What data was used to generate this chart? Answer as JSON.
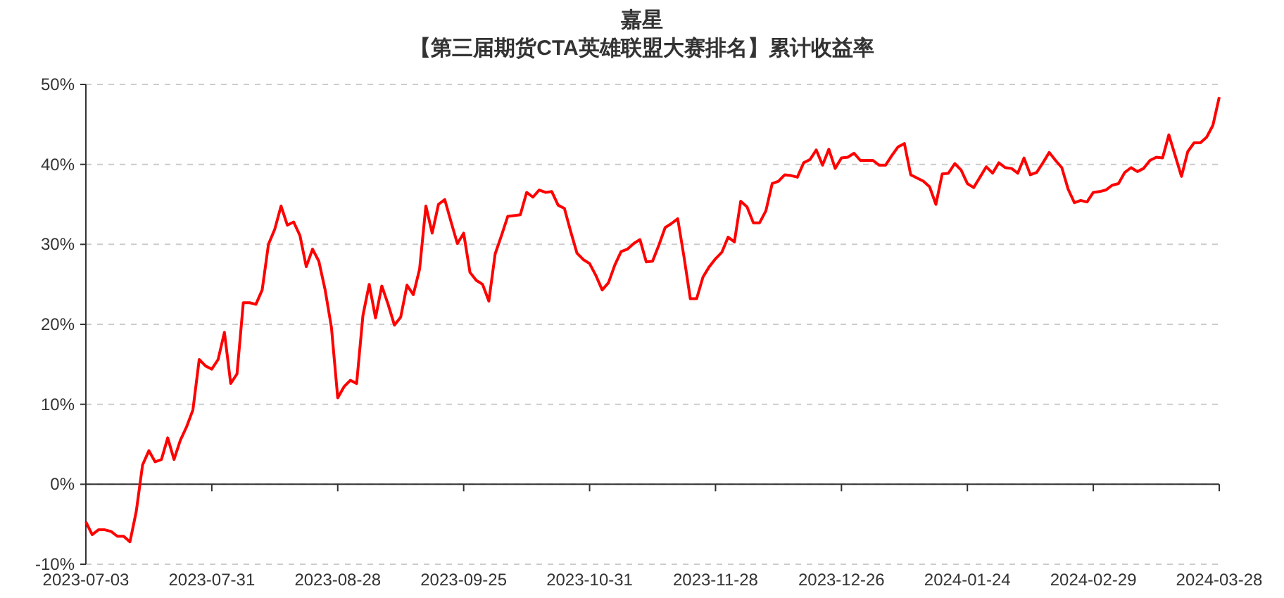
{
  "chart_data": {
    "type": "line",
    "title": "嘉星",
    "subtitle": "【第三届期货CTA英雄联盟大赛排名】累计收益率",
    "categories": [
      "2023-07-03",
      null,
      null,
      null,
      null,
      null,
      null,
      null,
      null,
      null,
      null,
      null,
      null,
      null,
      null,
      null,
      null,
      null,
      null,
      null,
      "2023-07-31",
      null,
      null,
      null,
      null,
      null,
      null,
      null,
      null,
      null,
      null,
      null,
      null,
      null,
      null,
      null,
      null,
      null,
      null,
      null,
      "2023-08-28",
      null,
      null,
      null,
      null,
      null,
      null,
      null,
      null,
      null,
      null,
      null,
      null,
      null,
      null,
      null,
      null,
      null,
      null,
      null,
      "2023-09-25",
      null,
      null,
      null,
      null,
      null,
      null,
      null,
      null,
      null,
      null,
      null,
      null,
      null,
      null,
      null,
      null,
      null,
      null,
      null,
      "2023-10-31",
      null,
      null,
      null,
      null,
      null,
      null,
      null,
      null,
      null,
      null,
      null,
      null,
      null,
      null,
      null,
      null,
      null,
      null,
      null,
      "2023-11-28",
      null,
      null,
      null,
      null,
      null,
      null,
      null,
      null,
      null,
      null,
      null,
      null,
      null,
      null,
      null,
      null,
      null,
      null,
      null,
      "2023-12-26",
      null,
      null,
      null,
      null,
      null,
      null,
      null,
      null,
      null,
      null,
      null,
      null,
      null,
      null,
      null,
      null,
      null,
      null,
      null,
      "2024-01-24",
      null,
      null,
      null,
      null,
      null,
      null,
      null,
      null,
      null,
      null,
      null,
      null,
      null,
      null,
      null,
      null,
      null,
      null,
      null,
      "2024-02-29",
      null,
      null,
      null,
      null,
      null,
      null,
      null,
      null,
      null,
      null,
      null,
      null,
      null,
      null,
      null,
      null,
      null,
      null,
      null,
      "2024-03-28"
    ],
    "series": [
      {
        "color": "#ff0000",
        "values": [
          -4.7,
          -6.3,
          -5.7,
          -5.7,
          -5.9,
          -6.5,
          -6.5,
          -7.2,
          -3.4,
          2.4,
          4.2,
          2.8,
          3.1,
          5.8,
          3.1,
          5.5,
          7.2,
          9.3,
          15.6,
          14.8,
          14.4,
          15.6,
          19.0,
          12.6,
          13.8,
          22.7,
          22.7,
          22.5,
          24.3,
          30.0,
          31.9,
          34.8,
          32.4,
          32.8,
          31.1,
          27.2,
          29.4,
          27.9,
          24.3,
          19.6,
          10.8,
          12.2,
          13.0,
          12.6,
          21.1,
          25.0,
          20.8,
          24.8,
          22.5,
          19.9,
          20.9,
          24.9,
          23.7,
          26.9,
          34.8,
          31.4,
          35.0,
          35.6,
          32.8,
          30.1,
          31.4,
          26.5,
          25.5,
          25.0,
          22.9,
          28.8,
          31.1,
          33.5,
          33.6,
          33.7,
          36.5,
          35.9,
          36.8,
          36.5,
          36.6,
          34.9,
          34.5,
          31.6,
          28.9,
          28.1,
          27.6,
          26.1,
          24.3,
          25.2,
          27.4,
          29.1,
          29.4,
          30.1,
          30.6,
          27.8,
          27.9,
          29.9,
          32.1,
          32.6,
          33.2,
          28.4,
          23.2,
          23.2,
          25.9,
          27.2,
          28.2,
          29.0,
          30.9,
          30.3,
          35.4,
          34.7,
          32.7,
          32.7,
          34.2,
          37.6,
          37.9,
          38.7,
          38.6,
          38.4,
          40.2,
          40.6,
          41.8,
          39.9,
          41.9,
          39.5,
          40.8,
          40.9,
          41.4,
          40.5,
          40.5,
          40.5,
          39.9,
          39.9,
          41.1,
          42.2,
          42.6,
          38.7,
          38.3,
          37.9,
          37.2,
          35.0,
          38.8,
          38.9,
          40.1,
          39.3,
          37.6,
          37.1,
          38.4,
          39.7,
          38.9,
          40.2,
          39.6,
          39.5,
          38.9,
          40.8,
          38.7,
          39.0,
          40.2,
          41.5,
          40.5,
          39.6,
          36.9,
          35.2,
          35.5,
          35.3,
          36.5,
          36.6,
          36.8,
          37.4,
          37.6,
          39.0,
          39.6,
          39.1,
          39.5,
          40.5,
          40.9,
          40.8,
          43.7,
          41.1,
          38.5,
          41.6,
          42.7,
          42.7,
          43.4,
          44.9,
          48.4
        ]
      }
    ],
    "ylim": [
      -10,
      50
    ],
    "yticks": [
      {
        "value": -10,
        "label": "-10%"
      },
      {
        "value": 0,
        "label": "0%"
      },
      {
        "value": 10,
        "label": "10%"
      },
      {
        "value": 20,
        "label": "20%"
      },
      {
        "value": 30,
        "label": "30%"
      },
      {
        "value": 40,
        "label": "40%"
      },
      {
        "value": 50,
        "label": "50%"
      }
    ],
    "grid": "y",
    "line_style": "solid"
  }
}
